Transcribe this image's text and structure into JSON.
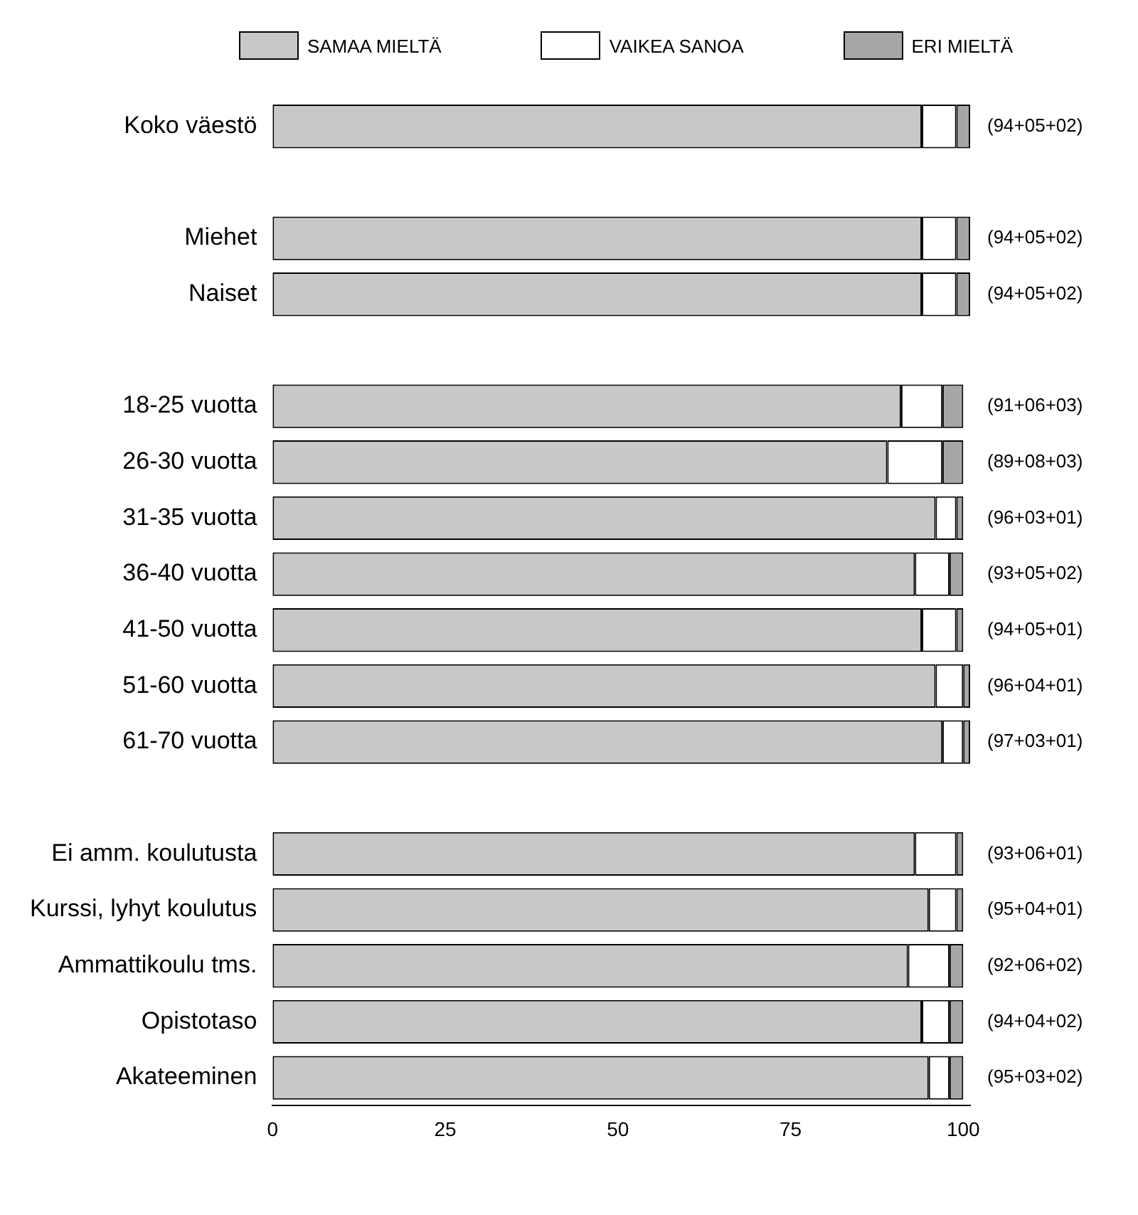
{
  "chart_data": {
    "type": "bar",
    "orientation": "horizontal",
    "stacked": true,
    "categories": [
      "Koko väestö",
      null,
      "Miehet",
      "Naiset",
      null,
      "18-25 vuotta",
      "26-30 vuotta",
      "31-35 vuotta",
      "36-40 vuotta",
      "41-50 vuotta",
      "51-60 vuotta",
      "61-70 vuotta",
      null,
      "Ei amm. koulutusta",
      "Kurssi, lyhyt koulutus",
      "Ammattikoulu tms.",
      "Opistotaso",
      "Akateeminen"
    ],
    "series": [
      {
        "name": "SAMAA MIELTÄ",
        "color": "#c8c8c8",
        "values": [
          94,
          null,
          94,
          94,
          null,
          91,
          89,
          96,
          93,
          94,
          96,
          97,
          null,
          93,
          95,
          92,
          94,
          95
        ]
      },
      {
        "name": "VAIKEA SANOA",
        "color": "#ffffff",
        "values": [
          5,
          null,
          5,
          5,
          null,
          6,
          8,
          3,
          5,
          5,
          4,
          3,
          null,
          6,
          4,
          6,
          4,
          3
        ]
      },
      {
        "name": "ERI MIELTÄ",
        "color": "#a6a6a6",
        "values": [
          2,
          null,
          2,
          2,
          null,
          3,
          3,
          1,
          2,
          1,
          1,
          1,
          null,
          1,
          1,
          2,
          2,
          2
        ]
      }
    ],
    "totals": [
      "(94+05+02)",
      null,
      "(94+05+02)",
      "(94+05+02)",
      null,
      "(91+06+03)",
      "(89+08+03)",
      "(96+03+01)",
      "(93+05+02)",
      "(94+05+01)",
      "(96+04+01)",
      "(97+03+01)",
      null,
      "(93+06+01)",
      "(95+04+01)",
      "(92+06+02)",
      "(94+04+02)",
      "(95+03+02)"
    ],
    "xlim": [
      0,
      101
    ],
    "xticks": [
      0,
      25,
      50,
      75,
      100
    ],
    "grid": false,
    "legend": "top"
  }
}
